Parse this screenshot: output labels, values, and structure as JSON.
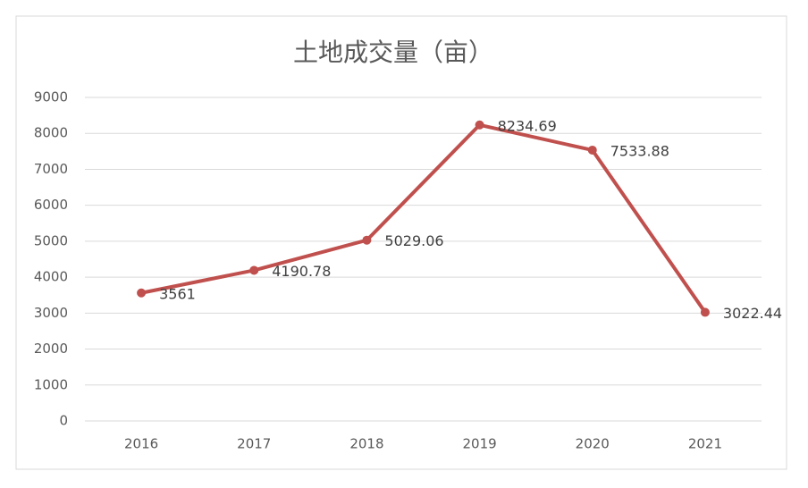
{
  "chart_data": {
    "type": "line",
    "title": "土地成交量（亩）",
    "categories": [
      "2016",
      "2017",
      "2018",
      "2019",
      "2020",
      "2021"
    ],
    "values": [
      3561,
      4190.78,
      5029.06,
      8234.69,
      7533.88,
      3022.44
    ],
    "color": "#c0504d",
    "ylim": [
      0,
      9000
    ],
    "yticks": [
      0,
      1000,
      2000,
      3000,
      4000,
      5000,
      6000,
      7000,
      8000,
      9000
    ],
    "grid": true,
    "data_labels": true
  }
}
